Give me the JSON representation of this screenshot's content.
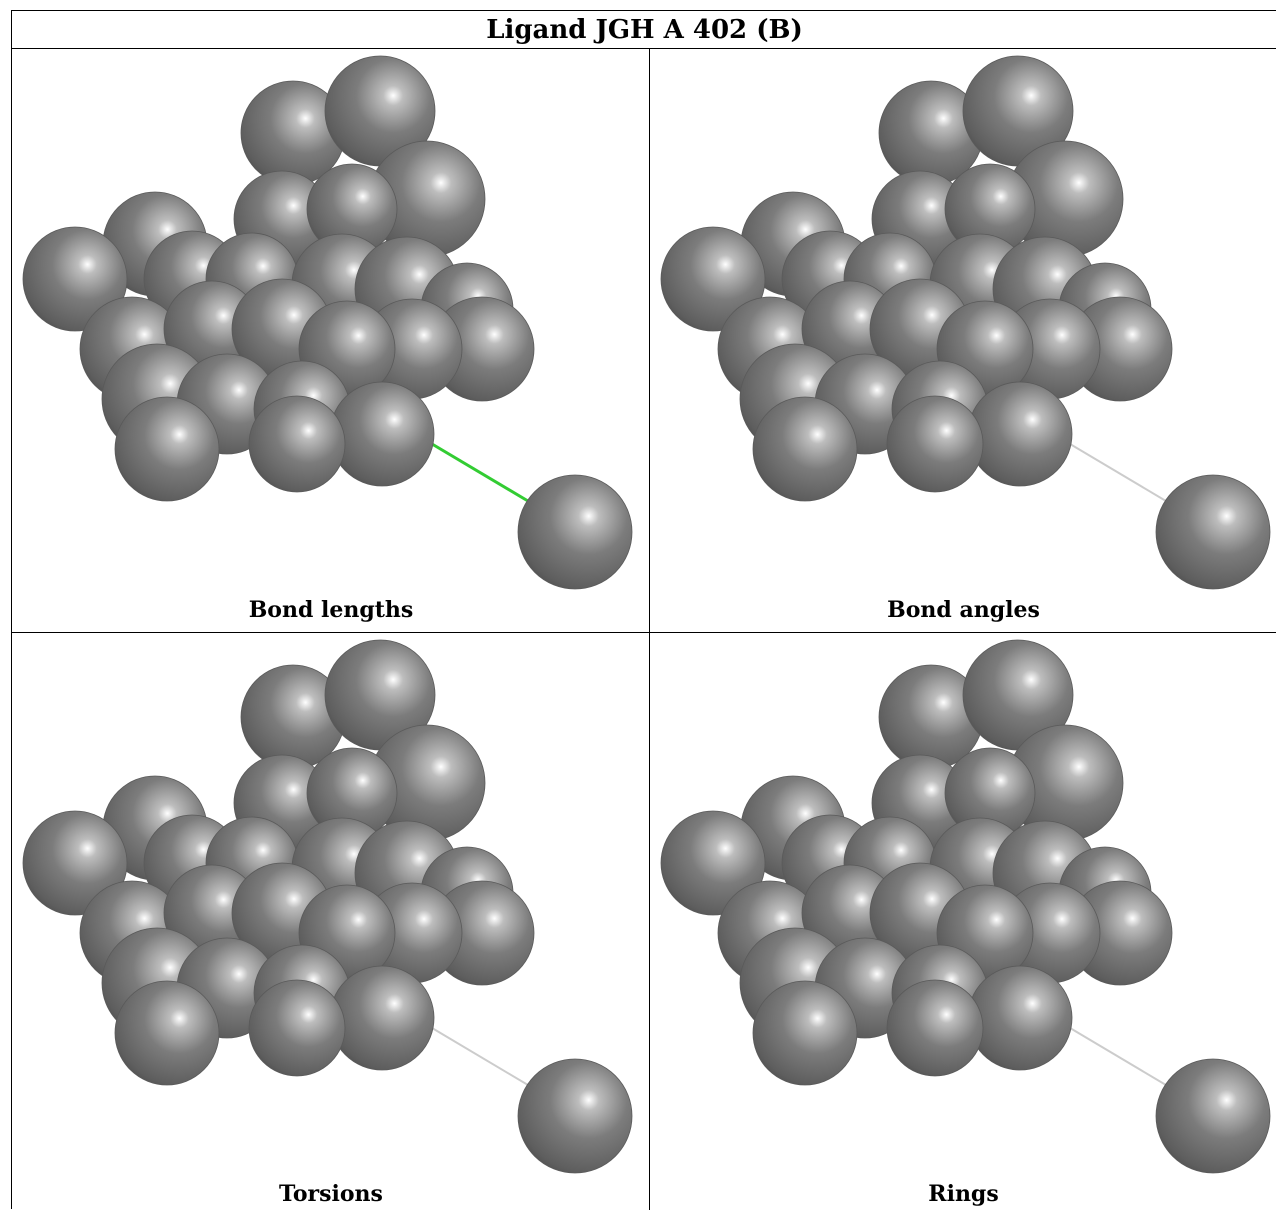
{
  "title": "Ligand JGH A 402 (B)",
  "panels": [
    {
      "caption": "Bond lengths",
      "bond_color": "#33cc33"
    },
    {
      "caption": "Bond angles",
      "bond_color": "#cccccc"
    },
    {
      "caption": "Torsions",
      "bond_color": "#cccccc"
    },
    {
      "caption": "Rings",
      "bond_color": "#cccccc"
    }
  ],
  "colors": {
    "atom": "#707070",
    "atom_highlight": "#ffffff",
    "line": "#000000"
  },
  "icon": "ligand-sphere-model"
}
